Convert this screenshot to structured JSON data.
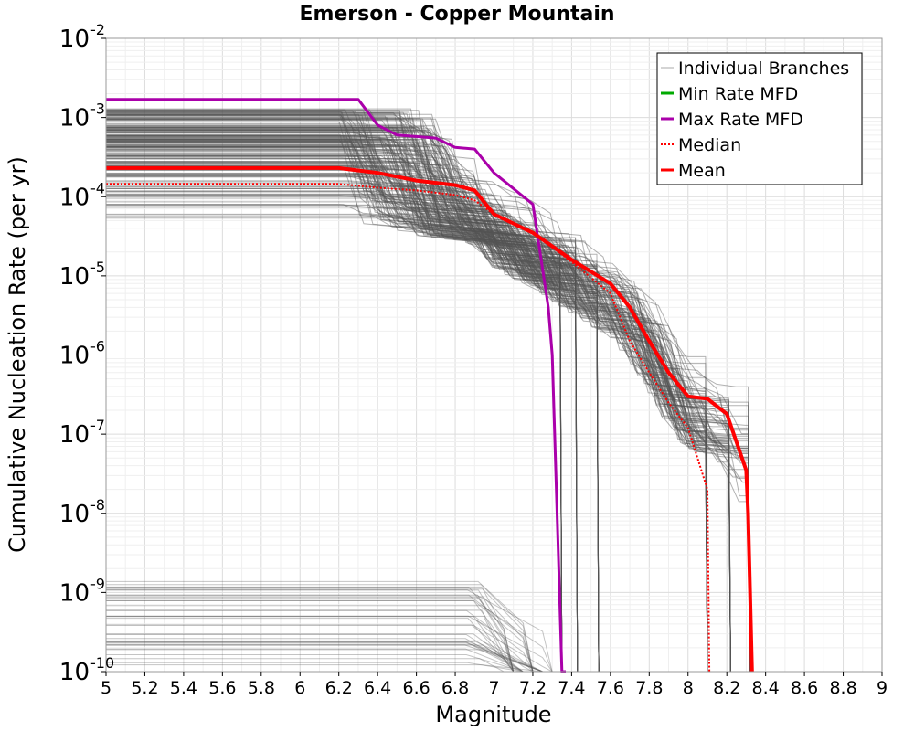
{
  "chart_data": {
    "type": "line",
    "title": "Emerson - Copper Mountain",
    "xlabel": "Magnitude",
    "ylabel": "Cumulative Nucleation Rate (per yr)",
    "xlim": [
      5,
      9
    ],
    "ylim": [
      1e-10,
      0.01
    ],
    "yscale": "log",
    "grid": true,
    "legend_position": "top-right",
    "x_ticks": [
      "5",
      "5.2",
      "5.4",
      "5.6",
      "5.8",
      "6",
      "6.2",
      "6.4",
      "6.6",
      "6.8",
      "7",
      "7.2",
      "7.4",
      "7.6",
      "7.8",
      "8",
      "8.2",
      "8.4",
      "8.6",
      "8.8",
      "9"
    ],
    "y_ticks": [
      {
        "base": "10",
        "exp": "-10",
        "value": 1e-10
      },
      {
        "base": "10",
        "exp": "-9",
        "value": 1e-09
      },
      {
        "base": "10",
        "exp": "-8",
        "value": 1e-08
      },
      {
        "base": "10",
        "exp": "-7",
        "value": 1e-07
      },
      {
        "base": "10",
        "exp": "-6",
        "value": 1e-06
      },
      {
        "base": "10",
        "exp": "-5",
        "value": 1e-05
      },
      {
        "base": "10",
        "exp": "-4",
        "value": 0.0001
      },
      {
        "base": "10",
        "exp": "-3",
        "value": 0.001
      },
      {
        "base": "10",
        "exp": "-2",
        "value": 0.01
      }
    ],
    "series": [
      {
        "name": "Max Rate MFD",
        "color": "#aa00aa",
        "style": "solid",
        "x": [
          5.0,
          6.3,
          6.4,
          6.5,
          6.7,
          6.8,
          6.9,
          7.0,
          7.2,
          7.28,
          7.3,
          7.35,
          7.37
        ],
        "y": [
          0.0017,
          0.0017,
          0.0008,
          0.0006,
          0.00055,
          0.00042,
          0.0004,
          0.0002,
          8e-05,
          4e-06,
          1e-06,
          1e-10,
          1e-10
        ]
      },
      {
        "name": "Median",
        "color": "#ff0000",
        "style": "dotted",
        "x": [
          5.0,
          6.2,
          6.4,
          6.6,
          6.8,
          6.9,
          7.0,
          7.2,
          7.4,
          7.6,
          7.7,
          7.8,
          7.9,
          8.0,
          8.1,
          8.11
        ],
        "y": [
          0.000145,
          0.000145,
          0.00013,
          0.00012,
          0.000105,
          9e-05,
          6e-05,
          3.5e-05,
          1.5e-05,
          6e-06,
          1.5e-06,
          6e-07,
          2.5e-07,
          1.2e-07,
          2e-08,
          1e-10
        ]
      },
      {
        "name": "Mean",
        "color": "#ff0000",
        "style": "solid",
        "x": [
          5.0,
          6.2,
          6.4,
          6.6,
          6.8,
          6.9,
          7.0,
          7.2,
          7.4,
          7.6,
          7.7,
          7.8,
          7.9,
          8.0,
          8.1,
          8.2,
          8.3,
          8.31,
          8.33
        ],
        "y": [
          0.00023,
          0.00023,
          0.0002,
          0.00016,
          0.00014,
          0.00012,
          6e-05,
          3.5e-05,
          1.6e-05,
          8e-06,
          4e-06,
          1.5e-06,
          6e-07,
          3e-07,
          2.8e-07,
          1.8e-07,
          3.5e-08,
          1e-08,
          1e-10
        ]
      }
    ],
    "branch_bundle": {
      "name": "Individual Branches",
      "color": "#555555",
      "count": 200,
      "plateau_range": [
        2e-05,
        0.0013
      ],
      "low_bundle_range": [
        1e-10,
        1.4e-09
      ],
      "cutoff_magnitudes": [
        7.35,
        7.43,
        7.54,
        8.1,
        8.22,
        8.32
      ]
    },
    "legend": [
      {
        "label": "Individual Branches",
        "color": "#aaaaaa",
        "style": "thin"
      },
      {
        "label": "Min Rate MFD",
        "color": "#00aa00",
        "style": "solid"
      },
      {
        "label": "Max Rate MFD",
        "color": "#aa00aa",
        "style": "solid"
      },
      {
        "label": "Median",
        "color": "#ff0000",
        "style": "dotted"
      },
      {
        "label": "Mean",
        "color": "#ff0000",
        "style": "solid"
      }
    ]
  }
}
